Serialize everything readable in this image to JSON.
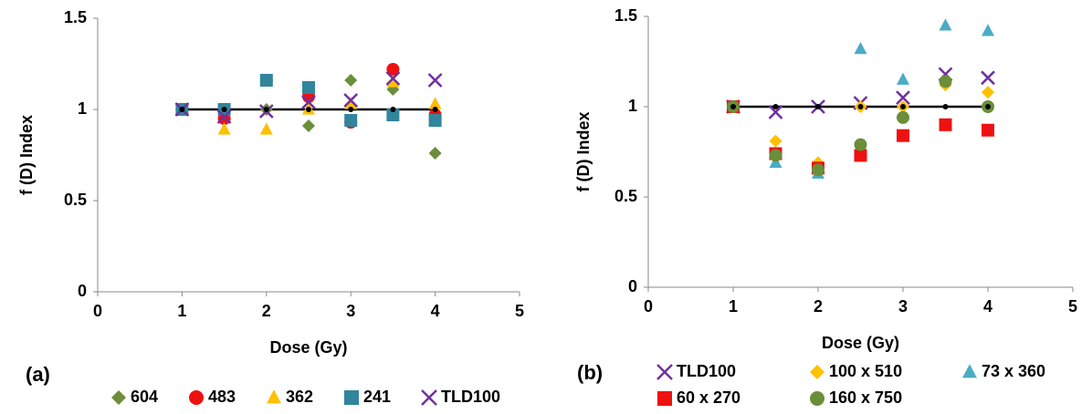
{
  "chart_data": [
    {
      "type": "scatter",
      "label": "(a)",
      "xlabel": "Dose (Gy)",
      "ylabel": "f (D) Index",
      "xlim": [
        0,
        5
      ],
      "xticks": [
        0,
        1,
        2,
        3,
        4,
        5
      ],
      "ylim": [
        0,
        1.5
      ],
      "yticks": [
        0,
        0.5,
        1,
        1.5
      ],
      "reference": {
        "color": "#000000",
        "x": [
          1,
          1.5,
          2,
          2.5,
          3,
          3.5,
          4
        ],
        "values": [
          1,
          1,
          1,
          1,
          1,
          1,
          1
        ]
      },
      "series": [
        {
          "name": "604",
          "color": "#6b8e3a",
          "marker": "diamond",
          "x": [
            1,
            1.5,
            2,
            2.5,
            3,
            3.5,
            4
          ],
          "values": [
            1.0,
            0.97,
            1.0,
            0.91,
            1.16,
            1.11,
            0.76
          ]
        },
        {
          "name": "483",
          "color": "#ee1111",
          "marker": "circle",
          "x": [
            1,
            1.5,
            2,
            2.5,
            3,
            3.5,
            4
          ],
          "values": [
            1.0,
            0.95,
            1.16,
            1.07,
            0.93,
            1.22,
            0.97
          ]
        },
        {
          "name": "362",
          "color": "#ffc000",
          "marker": "triangle",
          "x": [
            1,
            1.5,
            2,
            2.5,
            3,
            3.5,
            4
          ],
          "values": [
            1.0,
            0.89,
            0.89,
            1.0,
            1.03,
            1.15,
            1.03
          ]
        },
        {
          "name": "241",
          "color": "#31859c",
          "marker": "square",
          "x": [
            1,
            1.5,
            2,
            2.5,
            3,
            3.5,
            4
          ],
          "values": [
            1.0,
            1.0,
            1.16,
            1.12,
            0.94,
            0.97,
            0.94
          ]
        },
        {
          "name": "TLD100",
          "color": "#7030a0",
          "marker": "x",
          "x": [
            1,
            1.5,
            2,
            2.5,
            3,
            3.5,
            4
          ],
          "values": [
            1.0,
            0.96,
            0.99,
            1.04,
            1.05,
            1.17,
            1.16
          ]
        }
      ]
    },
    {
      "type": "scatter",
      "label": "(b)",
      "xlabel": "Dose (Gy)",
      "ylabel": "f (D) Index",
      "xlim": [
        0,
        5
      ],
      "xticks": [
        0,
        1,
        2,
        3,
        4,
        5
      ],
      "ylim": [
        0,
        1.5
      ],
      "yticks": [
        0,
        0.5,
        1,
        1.5
      ],
      "reference": {
        "color": "#000000",
        "x": [
          1,
          1.5,
          2,
          2.5,
          3,
          3.5,
          4
        ],
        "values": [
          1,
          1,
          1,
          1,
          1,
          1,
          1
        ]
      },
      "series": [
        {
          "name": "TLD100",
          "color": "#7030a0",
          "marker": "x",
          "x": [
            1,
            1.5,
            2,
            2.5,
            3,
            3.5,
            4
          ],
          "values": [
            1.0,
            0.97,
            1.0,
            1.02,
            1.05,
            1.18,
            1.16
          ]
        },
        {
          "name": "100 x 510",
          "color": "#ffc000",
          "marker": "diamond",
          "x": [
            1,
            1.5,
            2,
            2.5,
            3,
            3.5,
            4
          ],
          "values": [
            1.0,
            0.81,
            0.69,
            1.0,
            1.0,
            1.12,
            1.08
          ]
        },
        {
          "name": "73 x 360",
          "color": "#4bacc6",
          "marker": "triangle",
          "x": [
            1,
            1.5,
            2,
            2.5,
            3,
            3.5,
            4
          ],
          "values": [
            1.0,
            0.69,
            0.63,
            1.32,
            1.15,
            1.45,
            1.42
          ]
        },
        {
          "name": "60 x 270",
          "color": "#ee1111",
          "marker": "square",
          "x": [
            1,
            1.5,
            2,
            2.5,
            3,
            3.5,
            4
          ],
          "values": [
            1.0,
            0.74,
            0.66,
            0.73,
            0.84,
            0.9,
            0.87
          ]
        },
        {
          "name": "160 x 750",
          "color": "#6b8e3a",
          "marker": "circle",
          "x": [
            1,
            1.5,
            2,
            2.5,
            3,
            3.5,
            4
          ],
          "values": [
            1.0,
            0.73,
            0.65,
            0.79,
            0.94,
            1.14,
            1.0
          ]
        }
      ]
    }
  ]
}
